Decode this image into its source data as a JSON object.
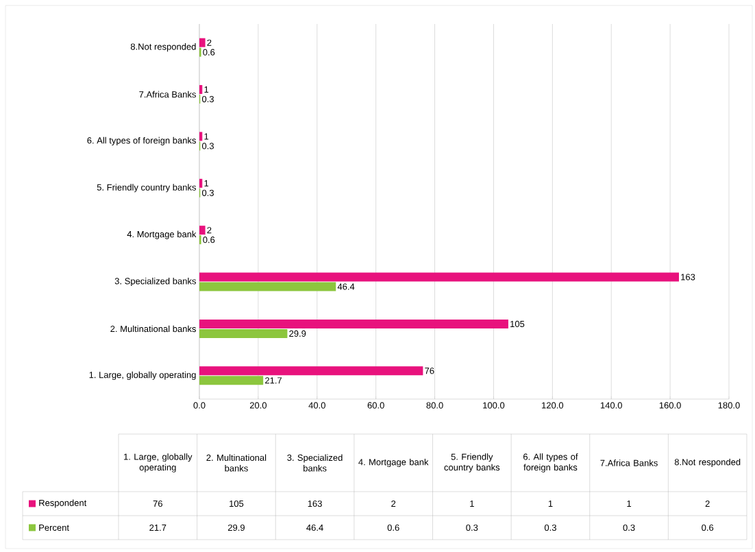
{
  "chart_data": [
    {
      "type": "bar",
      "orientation": "horizontal",
      "categories": [
        "8.Not responded",
        "7.Africa Banks",
        "6. All types of foreign banks",
        "5. Friendly country banks",
        "4. Mortgage bank",
        "3. Specialized banks",
        "2. Multinational banks",
        "1. Large, globally operating"
      ],
      "series": [
        {
          "color": "#e8127d",
          "values": [
            2,
            1,
            1,
            1,
            2,
            163,
            105,
            76
          ]
        },
        {
          "color": "#8cc63e",
          "values": [
            0.6,
            0.3,
            0.3,
            0.3,
            0.6,
            46.4,
            29.9,
            21.7
          ]
        }
      ],
      "xlim": [
        0,
        180
      ],
      "xticks": [
        {
          "value": 0,
          "label": "0.0"
        },
        {
          "value": 20,
          "label": "20.0"
        },
        {
          "value": 40,
          "label": "40.0"
        },
        {
          "value": 60,
          "label": "60.0"
        },
        {
          "value": 80,
          "label": "80.0"
        },
        {
          "value": 100,
          "label": "100.0"
        },
        {
          "value": 120,
          "label": "120.0"
        },
        {
          "value": 140,
          "label": "140.0"
        },
        {
          "value": 160,
          "label": "160.0"
        },
        {
          "value": 180,
          "label": "180.0"
        }
      ],
      "grid": "x",
      "data_labels": true
    },
    {
      "type": "other",
      "categories": [
        "1. Large, globally operating",
        "2. Multinational banks",
        "3. Specialized banks",
        "4. Mortgage bank",
        "5. Friendly country banks",
        "6. All types of foreign banks",
        "7.Africa Banks",
        "8.Not responded"
      ],
      "series": [
        {
          "name": "Respondent",
          "color": "#e8127d",
          "values": [
            76,
            105,
            163,
            2,
            1,
            1,
            1,
            2
          ]
        },
        {
          "name": "Percent",
          "color": "#8cc63e",
          "values": [
            21.7,
            29.9,
            46.4,
            0.6,
            0.3,
            0.3,
            0.3,
            0.6
          ]
        }
      ],
      "legend": "left",
      "data_labels": true
    }
  ]
}
